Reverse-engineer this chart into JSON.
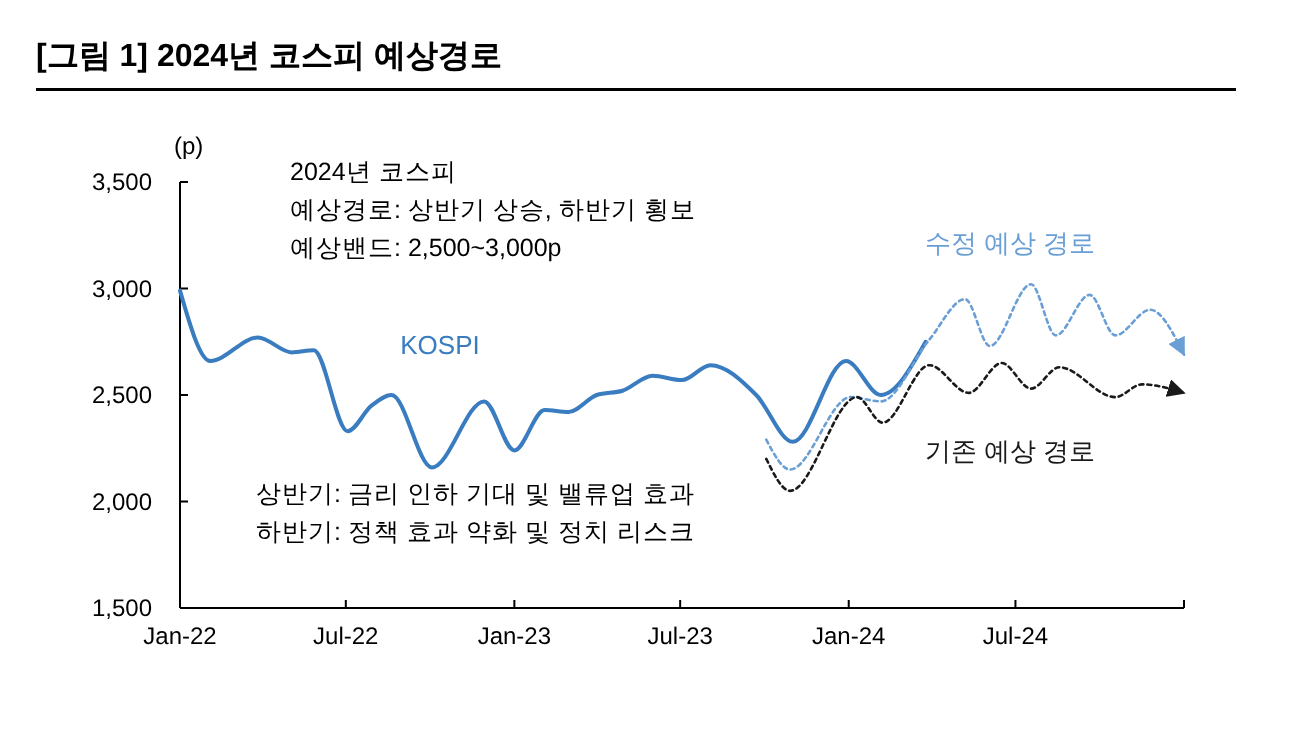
{
  "chart_data": {
    "type": "line",
    "title": "[그림 1] 2024년 코스피 예상경로",
    "ylabel": "(p)",
    "annotations": [
      "2024년 코스피",
      "예상경로: 상반기 상승, 하반기 횡보",
      "예상밴드: 2,500~3,000p",
      "상반기: 금리 인하 기대 및 밸류업 효과",
      "하반기: 정책 효과 약화 및 정치 리스크"
    ],
    "xlim": [
      "2022-01-01",
      "2025-01-01"
    ],
    "xticks": [
      {
        "value": "2022-01-01",
        "label": "Jan-22"
      },
      {
        "value": "2022-07-01",
        "label": "Jul-22"
      },
      {
        "value": "2023-01-01",
        "label": "Jan-23"
      },
      {
        "value": "2023-07-01",
        "label": "Jul-23"
      },
      {
        "value": "2024-01-01",
        "label": "Jan-24"
      },
      {
        "value": "2024-07-01",
        "label": "Jul-24"
      },
      {
        "value": "2025-01-01",
        "label": null
      }
    ],
    "ylim": [
      1500,
      3500
    ],
    "yticks": [
      {
        "value": 1500,
        "label": "1,500"
      },
      {
        "value": 2000,
        "label": "2,000"
      },
      {
        "value": 2500,
        "label": "2,500"
      },
      {
        "value": 3000,
        "label": "3,000"
      },
      {
        "value": 3500,
        "label": "3,500"
      }
    ],
    "grid": false,
    "marker": "none",
    "series": [
      {
        "name": "KOSPI",
        "color": "#3a7cc0",
        "line_style": "solid",
        "x": [
          "2022-01-01",
          "2022-02-03",
          "2022-03-27",
          "2022-05-03",
          "2022-05-27",
          "2022-07-03",
          "2022-07-29",
          "2022-08-20",
          "2022-10-03",
          "2022-11-29",
          "2023-01-01",
          "2023-02-03",
          "2023-03-01",
          "2023-04-01",
          "2023-04-29",
          "2023-06-01",
          "2023-07-03",
          "2023-08-03",
          "2023-09-22",
          "2023-11-01",
          "2023-12-29",
          "2024-02-05",
          "2024-03-25"
        ],
        "values": [
          2990,
          2660,
          2770,
          2700,
          2710,
          2330,
          2450,
          2500,
          2160,
          2470,
          2240,
          2430,
          2420,
          2500,
          2520,
          2590,
          2570,
          2640,
          2500,
          2280,
          2660,
          2500,
          2750
        ]
      },
      {
        "name": "수정 예상 경로",
        "color": "#6a9fd6",
        "line_style": "dotted",
        "x": [
          "2023-10-03",
          "2023-10-29",
          "2024-01-03",
          "2024-02-05",
          "2024-03-29",
          "2024-05-07",
          "2024-06-03",
          "2024-07-18",
          "2024-08-14",
          "2024-09-20",
          "2024-10-18",
          "2024-11-25",
          "2025-01-01"
        ],
        "values": [
          2290,
          2150,
          2490,
          2470,
          2760,
          2950,
          2730,
          3020,
          2780,
          2970,
          2780,
          2900,
          2690
        ]
      },
      {
        "name": "기존 예상 경로",
        "color": "#1a1a1a",
        "line_style": "dotted",
        "x": [
          "2023-10-03",
          "2023-10-29",
          "2024-01-10",
          "2024-02-07",
          "2024-03-29",
          "2024-05-11",
          "2024-06-16",
          "2024-07-18",
          "2024-08-18",
          "2024-10-18",
          "2024-11-16",
          "2025-01-01"
        ],
        "values": [
          2200,
          2050,
          2490,
          2370,
          2640,
          2510,
          2650,
          2530,
          2630,
          2490,
          2550,
          2510
        ]
      }
    ]
  }
}
